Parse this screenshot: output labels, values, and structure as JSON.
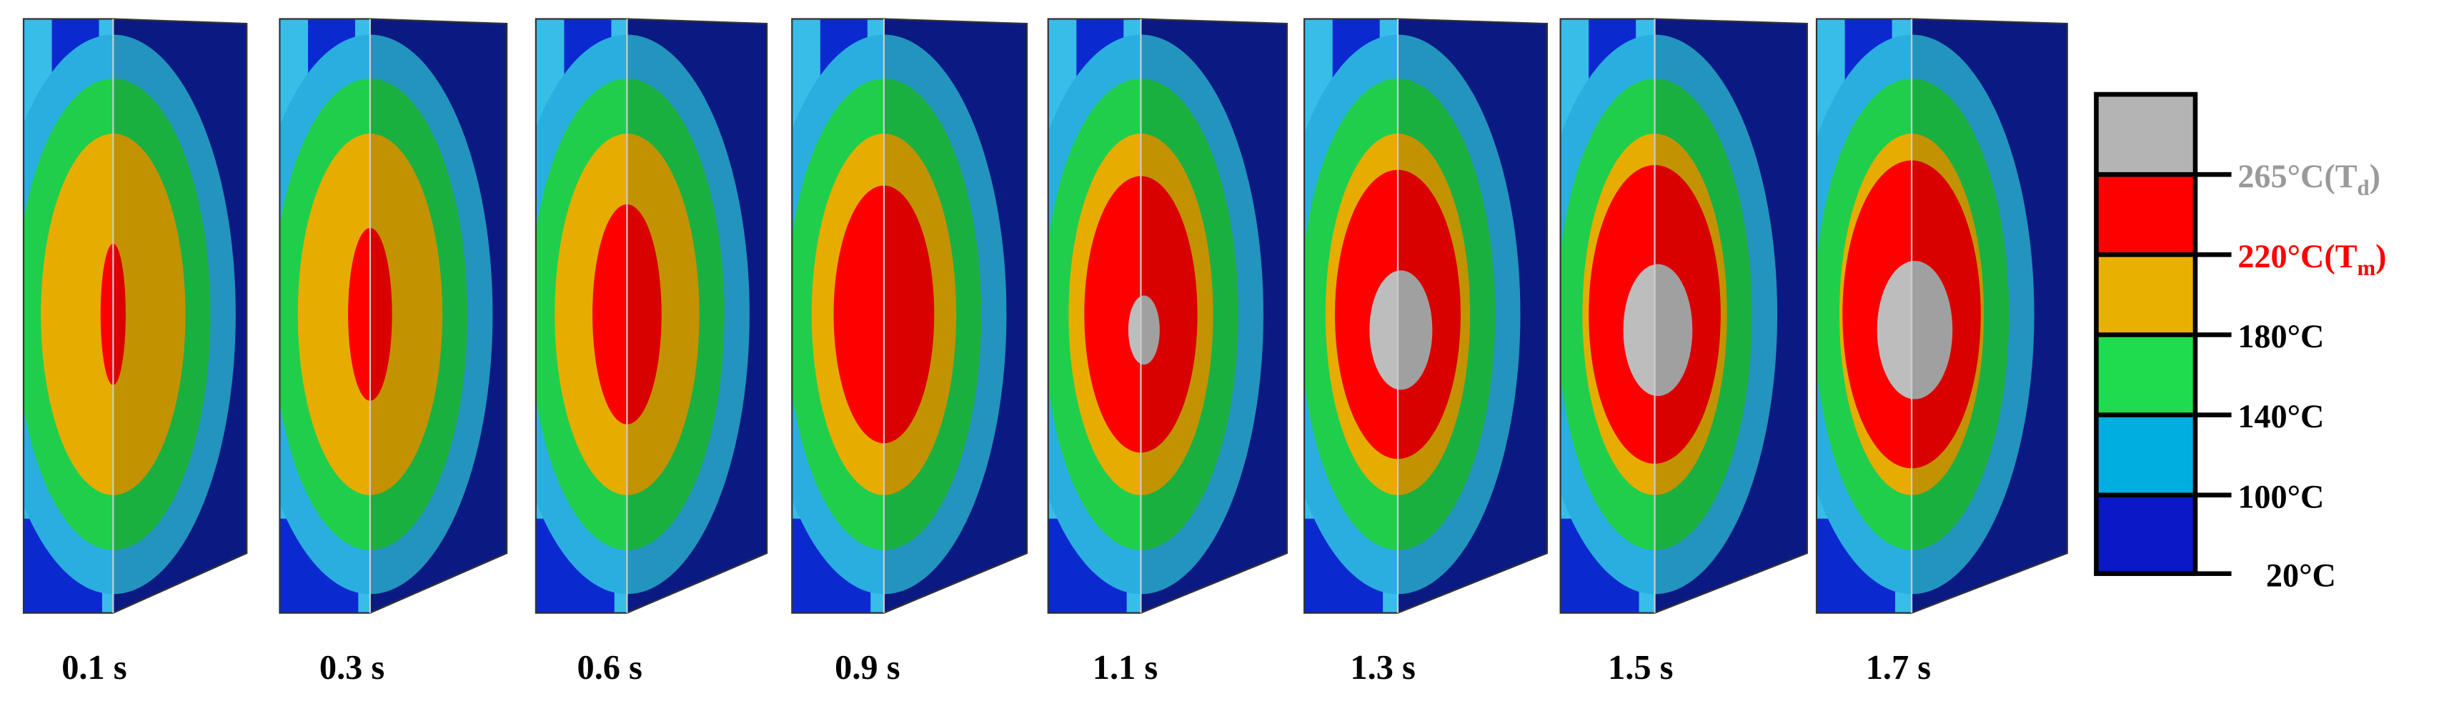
{
  "times": [
    "0.1 s",
    "0.3 s",
    "0.6 s",
    "0.9 s",
    "1.1 s",
    "1.3 s",
    "1.5 s",
    "1.7 s"
  ],
  "legend": {
    "labels": [
      {
        "text": "265°C(T",
        "sub": "d",
        "end": ")"
      },
      {
        "text": "220°C(T",
        "sub": "m",
        "end": ")"
      },
      "180°C",
      "140°C",
      "100°C",
      "20°C"
    ]
  }
}
